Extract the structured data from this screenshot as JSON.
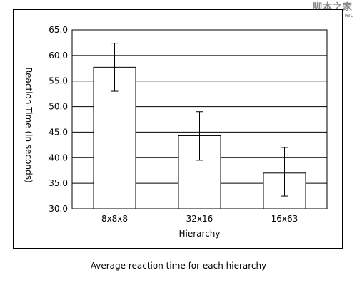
{
  "watermark": {
    "text": "脚本之家",
    "url": "www.Jb51.net"
  },
  "caption": "Average reaction time for each hierarchy",
  "chart_data": {
    "type": "bar",
    "categories": [
      "8x8x8",
      "32x16",
      "16x63"
    ],
    "values": [
      57.7,
      44.3,
      37.0
    ],
    "error_bars": [
      {
        "low": 53.0,
        "high": 62.4
      },
      {
        "low": 39.5,
        "high": 49.0
      },
      {
        "low": 32.5,
        "high": 42.0
      }
    ],
    "xlabel": "Hierarchy",
    "ylabel": "Reaction Time (in seconds)",
    "ylim": [
      30.0,
      65.0
    ],
    "yticks": [
      "30.0",
      "35.0",
      "40.0",
      "45.0",
      "50.0",
      "55.0",
      "60.0",
      "65.0"
    ],
    "grid": "horizontal",
    "colors": {
      "bar_fill": "#ffffff",
      "bar_stroke": "#000000",
      "grid": "#000000"
    }
  }
}
